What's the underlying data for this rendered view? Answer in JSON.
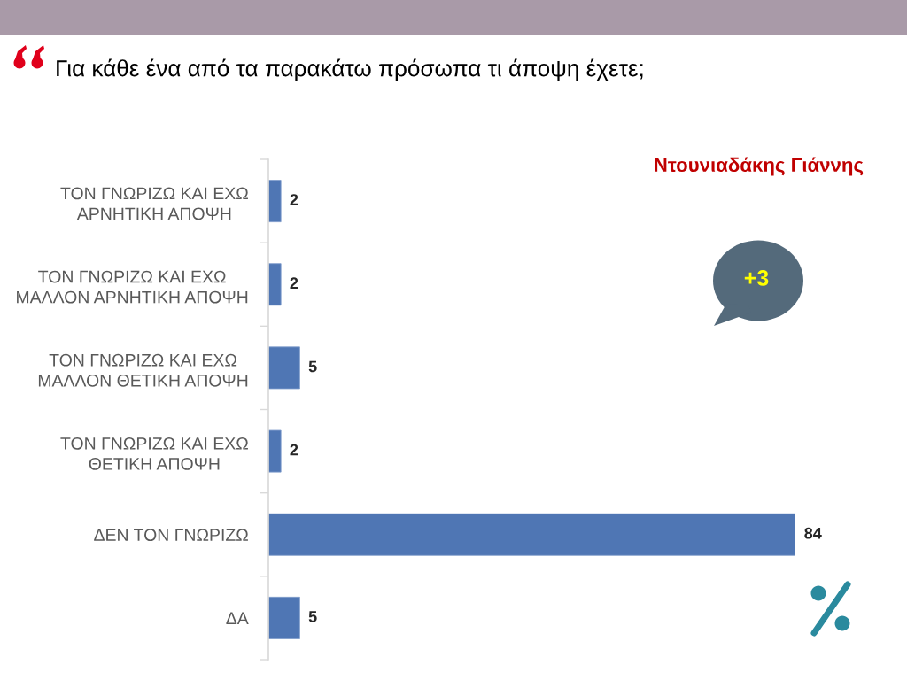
{
  "chart_data": {
    "type": "bar",
    "orientation": "horizontal",
    "title": "Για κάθε ένα από τα παρακάτω πρόσωπα τι άποψη έχετε;",
    "subtitle": "Ντουνιαδάκης Γιάννης",
    "categories": [
      "ΤΟΝ ΓΝΩΡΙΖΩ ΚΑΙ ΕΧΩ\nΑΡΝΗΤΙΚΗ ΑΠΟΨΗ",
      "ΤΟΝ ΓΝΩΡΙΖΩ ΚΑΙ ΕΧΩ\nΜΑΛΛΟΝ ΑΡΝΗΤΙΚΗ ΑΠΟΨΗ",
      "ΤΟΝ ΓΝΩΡΙΖΩ ΚΑΙ ΕΧΩ\nΜΑΛΛΟΝ ΘΕΤΙΚΗ ΑΠΟΨΗ",
      "ΤΟΝ ΓΝΩΡΙΖΩ ΚΑΙ ΕΧΩ\nΘΕΤΙΚΗ ΑΠΟΨΗ",
      "ΔΕΝ ΤΟΝ ΓΝΩΡΙΖΩ",
      "ΔΑ"
    ],
    "values": [
      2,
      2,
      5,
      2,
      84,
      5
    ],
    "color": "#4f76b4",
    "data_labels": true,
    "tick_labels": "y",
    "annotations": [
      "+3"
    ]
  }
}
